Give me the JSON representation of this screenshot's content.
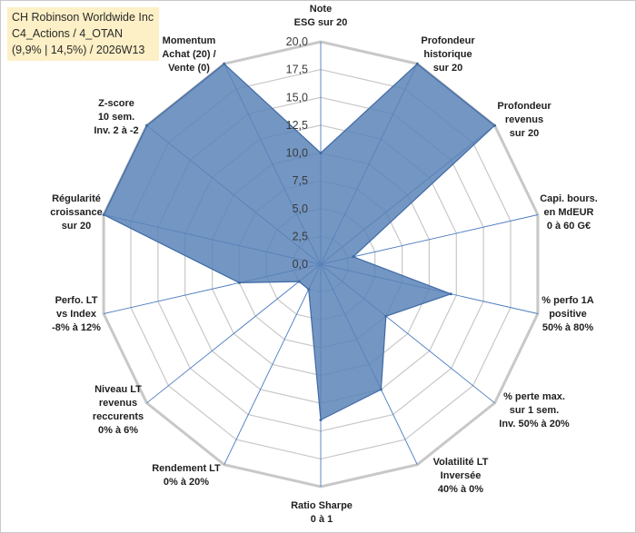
{
  "info": {
    "company": "CH Robinson Worldwide Inc",
    "portfolio": "C4_Actions / 4_OTAN",
    "stats": "(9,9% | 14,5%) / 2026W13"
  },
  "colors": {
    "fill": "#5b84b8",
    "stroke": "#3f6aa3",
    "grid": "#c8c8c8",
    "spoke": "#4a7bc0"
  },
  "chart_data": {
    "type": "radar",
    "title": "",
    "rmin": 0,
    "rmax": 20,
    "tick_step": 2.5,
    "tick_labels": [
      "0,0",
      "2,5",
      "5,0",
      "7,5",
      "10,0",
      "12,5",
      "15,0",
      "17,5",
      "20,0"
    ],
    "axes": [
      {
        "label": [
          "Note",
          "ESG sur 20"
        ],
        "value": 10
      },
      {
        "label": [
          "Profondeur",
          "historique",
          "sur 20"
        ],
        "value": 20
      },
      {
        "label": [
          "Profondeur",
          "revenus",
          "sur 20"
        ],
        "value": 20
      },
      {
        "label": [
          "Capi. bours.",
          "en MdEUR",
          "0 à 60 G€"
        ],
        "value": 3
      },
      {
        "label": [
          "% perfo 1A",
          "positive",
          "50% à 80%"
        ],
        "value": 12
      },
      {
        "label": [
          "% perte max.",
          "sur 1 sem.",
          "Inv. 50% à 20%"
        ],
        "value": 7.5
      },
      {
        "label": [
          "Volatilité LT",
          "Inversée",
          "40% à 0%"
        ],
        "value": 12.5
      },
      {
        "label": [
          "Ratio Sharpe",
          "0 à 1"
        ],
        "value": 14
      },
      {
        "label": [
          "Rendement LT",
          "0% à 20%"
        ],
        "value": 2.5
      },
      {
        "label": [
          "Niveau LT",
          "revenus",
          "reccurents",
          "0% à 6%"
        ],
        "value": 2.5
      },
      {
        "label": [
          "Perfo. LT",
          "vs Index",
          "-8% à 12%"
        ],
        "value": 7.5
      },
      {
        "label": [
          "Régularité",
          "croissance",
          "sur 20"
        ],
        "value": 20
      },
      {
        "label": [
          "Z-score",
          "10 sem.",
          "Inv. 2 à -2"
        ],
        "value": 20
      },
      {
        "label": [
          "Momentum",
          "Achat (20) /",
          "Vente (0)"
        ],
        "value": 20
      }
    ]
  }
}
